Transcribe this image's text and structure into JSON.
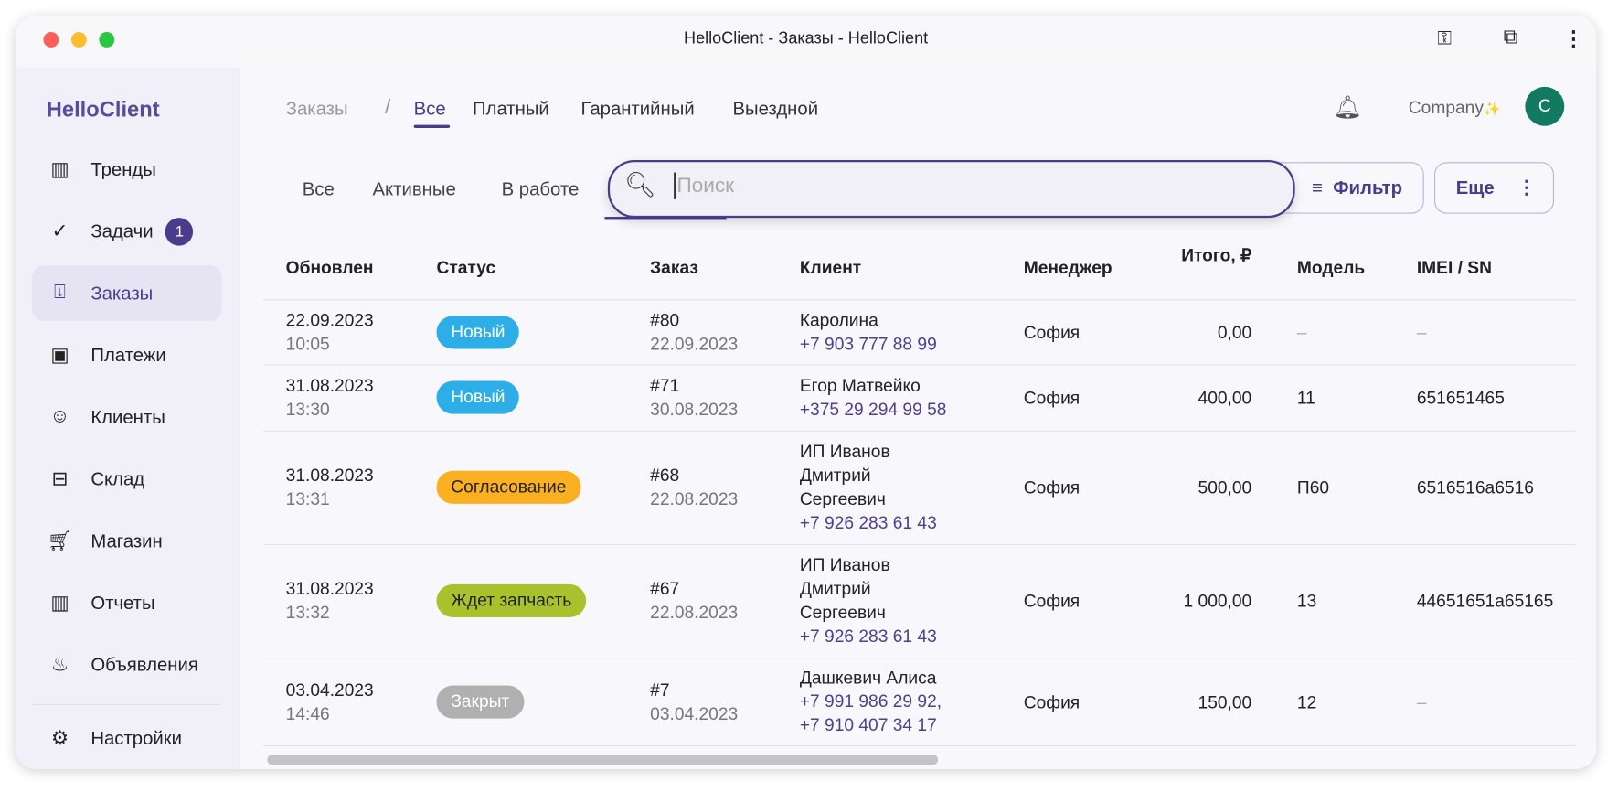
{
  "window": {
    "title": "HelloClient - Заказы - HelloClient",
    "colors": {
      "close": "#fe5f57",
      "minimize": "#febc2e",
      "zoom": "#28c840"
    }
  },
  "toolbar_icons": [
    "key-icon",
    "extension-icon",
    "more-vert-icon"
  ],
  "sidebar": {
    "logo": "HelloClient",
    "items": [
      {
        "label": "Тренды",
        "icon": "chart-icon"
      },
      {
        "label": "Задачи",
        "icon": "check-circle-icon",
        "badge": "1"
      },
      {
        "label": "Заказы",
        "icon": "inbox-download-icon",
        "active": true
      },
      {
        "label": "Платежи",
        "icon": "wallet-icon"
      },
      {
        "label": "Клиенты",
        "icon": "smile-icon"
      },
      {
        "label": "Склад",
        "icon": "archive-icon"
      },
      {
        "label": "Магазин",
        "icon": "cart-icon"
      },
      {
        "label": "Отчеты",
        "icon": "chart-icon"
      },
      {
        "label": "Объявления",
        "icon": "flame-icon"
      }
    ],
    "settings": {
      "label": "Настройки",
      "icon": "gear-icon"
    }
  },
  "header": {
    "breadcrumb": "Заказы",
    "separator": "/",
    "tabs": [
      "Все",
      "Платный",
      "Гарантийный",
      "Выездной"
    ],
    "active_tab": "Все",
    "company": "Company",
    "company_suffix": "✨",
    "avatar": "C",
    "avatar_color": "#137a62"
  },
  "filters": {
    "subtabs": [
      "Все",
      "Активные",
      "В работе"
    ],
    "search_placeholder": "Поиск",
    "filter_label": "Фильтр",
    "more_label": "Еще"
  },
  "table": {
    "columns": [
      "Обновлен",
      "Статус",
      "Заказ",
      "Клиент",
      "Менеджер",
      "Итого, ₽",
      "Модель",
      "IMEI / SN"
    ],
    "rows": [
      {
        "date": "22.09.2023",
        "time": "10:05",
        "status": "Новый",
        "status_color": "#2eaee9",
        "order": "#80",
        "order_date": "22.09.2023",
        "client": [
          "Каролина"
        ],
        "phones": [
          "+7 903 777 88 99"
        ],
        "manager": "София",
        "total": "0,00",
        "model": "–",
        "imei": "–"
      },
      {
        "date": "31.08.2023",
        "time": "13:30",
        "status": "Новый",
        "status_color": "#2eaee9",
        "order": "#71",
        "order_date": "30.08.2023",
        "client": [
          "Егор Матвейко"
        ],
        "phones": [
          "+375 29 294 99 58"
        ],
        "manager": "София",
        "total": "400,00",
        "model": "11",
        "imei": "651651465"
      },
      {
        "date": "31.08.2023",
        "time": "13:31",
        "status": "Согласование",
        "status_color": "#fbb022",
        "order": "#68",
        "order_date": "22.08.2023",
        "client": [
          "ИП Иванов",
          "Дмитрий",
          "Сергеевич"
        ],
        "phones": [
          "+7 926 283 61 43"
        ],
        "manager": "София",
        "total": "500,00",
        "model": "П60",
        "imei": "6516516a6516"
      },
      {
        "date": "31.08.2023",
        "time": "13:32",
        "status": "Ждет запчасть",
        "status_color": "#a9c22c",
        "order": "#67",
        "order_date": "22.08.2023",
        "client": [
          "ИП Иванов",
          "Дмитрий",
          "Сергеевич"
        ],
        "phones": [
          "+7 926 283 61 43"
        ],
        "manager": "София",
        "total": "1 000,00",
        "model": "13",
        "imei": "44651651a65165"
      },
      {
        "date": "03.04.2023",
        "time": "14:46",
        "status": "Закрыт",
        "status_color": "#b0b0b0",
        "order": "#7",
        "order_date": "03.04.2023",
        "client": [
          "Дашкевич Алиса"
        ],
        "phones": [
          "+7 991 986 29 92,",
          "+7 910 407 34 17"
        ],
        "manager": "София",
        "total": "150,00",
        "model": "12",
        "imei": "–"
      }
    ]
  }
}
